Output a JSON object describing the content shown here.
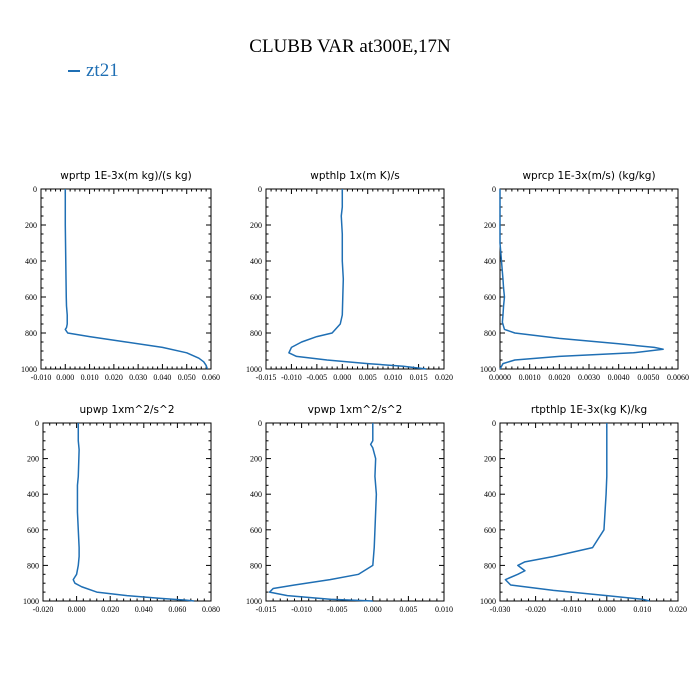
{
  "figure": {
    "title": "CLUBB VAR at300E,17N",
    "legend": [
      {
        "name": "zt21",
        "color": "#1f6fb4"
      }
    ]
  },
  "chart_data": [
    {
      "type": "line",
      "title": "wprtp  1E-3x(m kg)/(s kg)",
      "xlim": [
        -0.01,
        0.06
      ],
      "ylim": [
        1000,
        0
      ],
      "xticks": [
        "-0.010",
        "0.000",
        "0.010",
        "0.020",
        "0.030",
        "0.040",
        "0.050",
        "0.060"
      ],
      "yticks": [
        "0",
        "200",
        "400",
        "600",
        "800",
        "1000"
      ],
      "series": [
        {
          "name": "zt21",
          "color": "#1f6fb4",
          "x": [
            0.0,
            0.0,
            0.0002,
            0.0003,
            0.0004,
            0.0005,
            0.0008,
            0.0008,
            0.0005,
            0.0,
            0.001,
            0.01,
            0.025,
            0.04,
            0.05,
            0.055,
            0.057,
            0.058,
            0.0585
          ],
          "y": [
            0,
            200,
            400,
            500,
            600,
            650,
            700,
            750,
            770,
            780,
            800,
            820,
            850,
            880,
            910,
            940,
            960,
            980,
            1000
          ]
        }
      ]
    },
    {
      "type": "line",
      "title": "wpthlp  1x(m K)/s",
      "xlim": [
        -0.015,
        0.02
      ],
      "ylim": [
        1000,
        0
      ],
      "xticks": [
        "-0.015",
        "-0.010",
        "-0.005",
        "0.000",
        "0.005",
        "0.010",
        "0.015",
        "0.020"
      ],
      "yticks": [
        "0",
        "200",
        "400",
        "600",
        "800",
        "1000"
      ],
      "series": [
        {
          "name": "zt21",
          "color": "#1f6fb4",
          "x": [
            0.0,
            0.0,
            -0.0002,
            0.0,
            0.0,
            0.0002,
            0.0001,
            0.0,
            -0.0004,
            -0.002,
            -0.005,
            -0.008,
            -0.01,
            -0.0105,
            -0.009,
            -0.003,
            0.005,
            0.012,
            0.0165
          ],
          "y": [
            0,
            100,
            150,
            250,
            400,
            500,
            600,
            700,
            750,
            800,
            820,
            850,
            880,
            910,
            930,
            950,
            970,
            985,
            1000
          ]
        }
      ]
    },
    {
      "type": "line",
      "title": "wprcp  1E-3x(m/s) (kg/kg)",
      "xlim": [
        0.0,
        0.006
      ],
      "ylim": [
        1000,
        0
      ],
      "xticks": [
        "0.0000",
        "0.0010",
        "0.0020",
        "0.0030",
        "0.0040",
        "0.0050",
        "0.0060"
      ],
      "yticks": [
        "0",
        "200",
        "400",
        "600",
        "800",
        "1000"
      ],
      "series": [
        {
          "name": "zt21",
          "color": "#1f6fb4",
          "x": [
            0.0,
            0.0,
            0.0,
            5e-05,
            0.0001,
            0.00012,
            0.00015,
            0.00012,
            0.0001,
            8e-05,
            0.00015,
            0.0005,
            0.002,
            0.004,
            0.0052,
            0.0055,
            0.0045,
            0.002,
            0.0005,
            0.0001,
            0.0
          ],
          "y": [
            0,
            200,
            300,
            400,
            500,
            550,
            600,
            650,
            700,
            740,
            780,
            800,
            830,
            860,
            880,
            890,
            910,
            930,
            950,
            970,
            1000
          ]
        }
      ]
    },
    {
      "type": "line",
      "title": "upwp  1xm^2/s^2",
      "xlim": [
        -0.02,
        0.08
      ],
      "ylim": [
        1000,
        0
      ],
      "xticks": [
        "-0.020",
        "0.000",
        "0.020",
        "0.040",
        "0.060",
        "0.080"
      ],
      "yticks": [
        "0",
        "200",
        "400",
        "600",
        "800",
        "1000"
      ],
      "series": [
        {
          "name": "zt21",
          "color": "#1f6fb4",
          "x": [
            0.001,
            0.001,
            0.0015,
            0.001,
            0.0005,
            0.0005,
            0.001,
            0.0015,
            0.0015,
            0.001,
            0.0,
            -0.002,
            -0.001,
            0.003,
            0.012,
            0.03,
            0.05,
            0.065,
            0.07
          ],
          "y": [
            0,
            100,
            150,
            300,
            350,
            500,
            600,
            700,
            750,
            800,
            850,
            880,
            900,
            920,
            950,
            970,
            985,
            995,
            1000
          ]
        }
      ]
    },
    {
      "type": "line",
      "title": "vpwp  1xm^2/s^2",
      "xlim": [
        -0.015,
        0.01
      ],
      "ylim": [
        1000,
        0
      ],
      "xticks": [
        "-0.015",
        "-0.010",
        "-0.005",
        "0.000",
        "0.005",
        "0.010"
      ],
      "yticks": [
        "0",
        "200",
        "400",
        "600",
        "800",
        "1000"
      ],
      "series": [
        {
          "name": "zt21",
          "color": "#1f6fb4",
          "x": [
            0.0,
            0.0,
            -0.0003,
            0.0,
            0.0004,
            0.0003,
            0.0005,
            0.0004,
            0.0003,
            0.0002,
            0.0,
            -0.002,
            -0.006,
            -0.011,
            -0.014,
            -0.0145,
            -0.012,
            -0.006,
            0.0
          ],
          "y": [
            0,
            100,
            120,
            140,
            200,
            300,
            400,
            500,
            600,
            700,
            800,
            850,
            880,
            910,
            930,
            950,
            970,
            990,
            1000
          ]
        }
      ]
    },
    {
      "type": "line",
      "title": "rtpthlp  1E-3x(kg K)/kg",
      "xlim": [
        -0.03,
        0.02
      ],
      "ylim": [
        1000,
        0
      ],
      "xticks": [
        "-0.030",
        "-0.020",
        "-0.010",
        "0.000",
        "0.010",
        "0.020"
      ],
      "yticks": [
        "0",
        "200",
        "400",
        "600",
        "800",
        "1000"
      ],
      "series": [
        {
          "name": "zt21",
          "color": "#1f6fb4",
          "x": [
            0.0,
            0.0,
            -0.0002,
            -0.0005,
            -0.0008,
            -0.004,
            -0.015,
            -0.023,
            -0.025,
            -0.023,
            -0.025,
            -0.0285,
            -0.027,
            -0.015,
            0.0,
            0.01,
            0.012
          ],
          "y": [
            0,
            300,
            400,
            500,
            600,
            700,
            750,
            780,
            800,
            830,
            850,
            880,
            910,
            940,
            970,
            990,
            1000
          ]
        }
      ]
    }
  ]
}
